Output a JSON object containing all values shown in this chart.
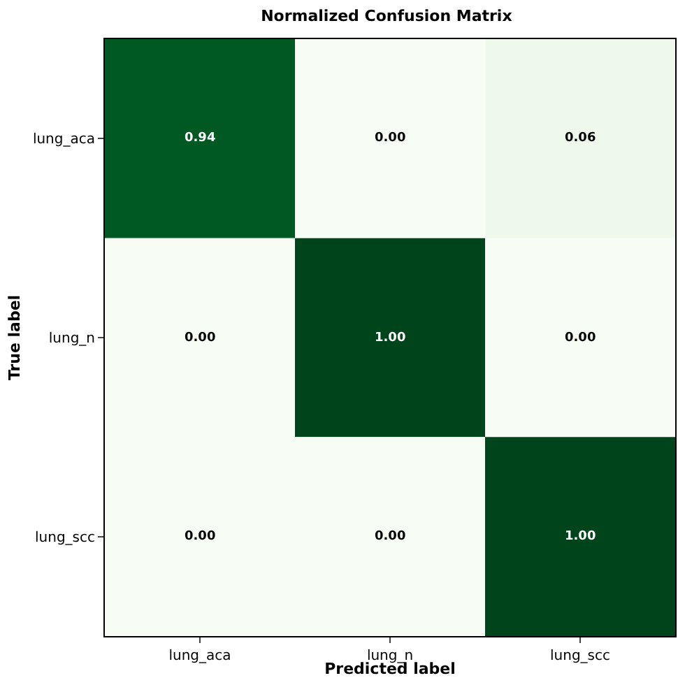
{
  "chart_data": {
    "type": "heatmap",
    "title": "Normalized Confusion Matrix",
    "xlabel": "Predicted label",
    "ylabel": "True label",
    "categories": [
      "lung_aca",
      "lung_n",
      "lung_scc"
    ],
    "y_categories": [
      "lung_aca",
      "lung_n",
      "lung_scc"
    ],
    "cells": [
      [
        0.94,
        0.0,
        0.06
      ],
      [
        0.0,
        1.0,
        0.0
      ],
      [
        0.0,
        0.0,
        1.0
      ]
    ],
    "cell_labels": [
      [
        "0.94",
        "0.00",
        "0.06"
      ],
      [
        "0.00",
        "1.00",
        "0.00"
      ],
      [
        "0.00",
        "0.00",
        "1.00"
      ]
    ],
    "data_labels": true
  }
}
